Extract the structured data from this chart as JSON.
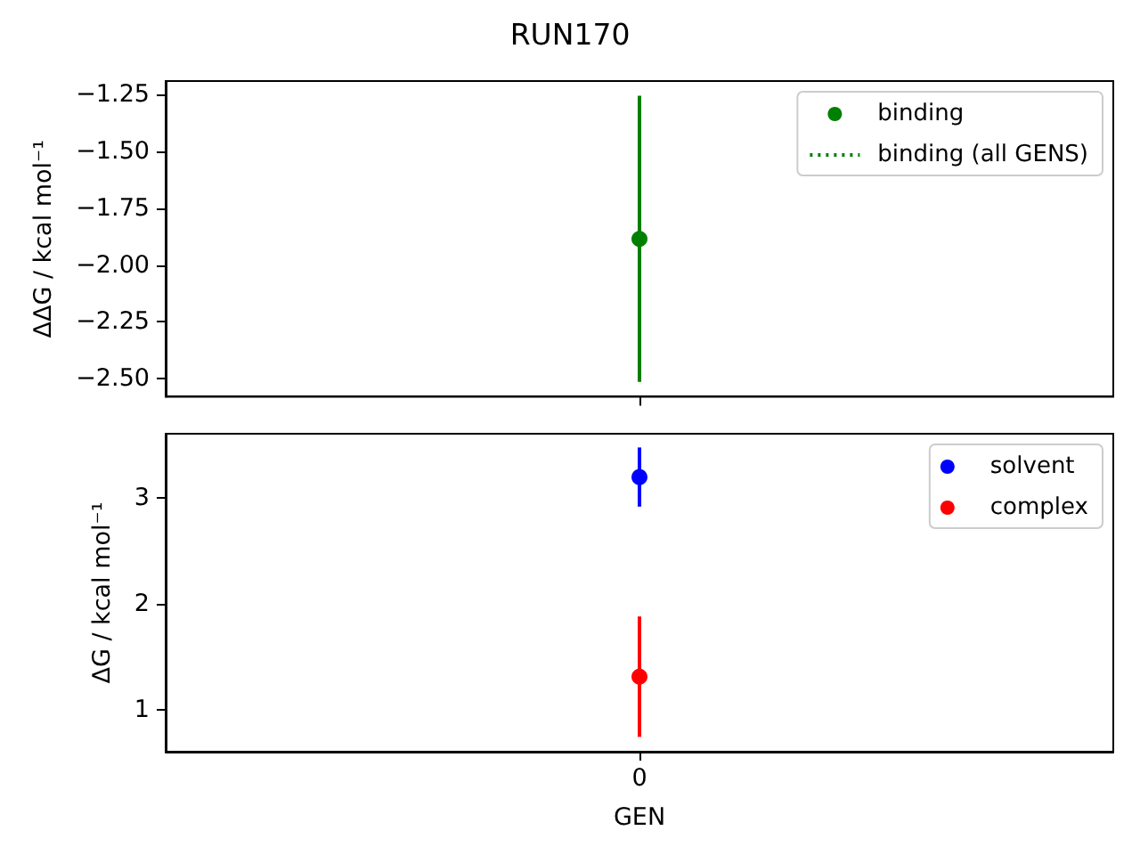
{
  "chart_data": [
    {
      "type": "scatter",
      "title": "RUN170",
      "ylabel": "ΔΔG / kcal mol⁻¹",
      "categories": [
        null
      ],
      "series": [
        {
          "name": "binding",
          "color": "#008000",
          "values": [
            -1.885
          ],
          "errors": [
            0.63
          ]
        },
        {
          "name": "binding (all GENS)",
          "type": "line",
          "color": "#008000",
          "line_style": "dotted",
          "marker": "none",
          "values": [
            null
          ]
        }
      ],
      "ylim": [
        -2.58,
        -1.19
      ],
      "yticks": [
        {
          "value": -2.5,
          "label": "−2.50"
        },
        {
          "value": -2.25,
          "label": "−2.25"
        },
        {
          "value": -2.0,
          "label": "−2.00"
        },
        {
          "value": -1.75,
          "label": "−1.75"
        },
        {
          "value": -1.5,
          "label": "−1.50"
        },
        {
          "value": -1.25,
          "label": "−1.25"
        }
      ],
      "tick_labels": "y",
      "legend": "top right",
      "marker": "circle",
      "grid": false
    },
    {
      "type": "scatter",
      "xlabel": "GEN",
      "ylabel": "ΔG / kcal mol⁻¹",
      "categories": [
        "0"
      ],
      "series": [
        {
          "name": "solvent",
          "color": "#0000ff",
          "values": [
            3.2
          ],
          "errors": [
            0.28
          ]
        },
        {
          "name": "complex",
          "color": "#ff0000",
          "values": [
            1.31
          ],
          "errors": [
            0.57
          ]
        }
      ],
      "ylim": [
        0.6,
        3.61
      ],
      "yticks": [
        1,
        2,
        3
      ],
      "legend": "top right",
      "marker": "circle",
      "grid": false
    }
  ]
}
